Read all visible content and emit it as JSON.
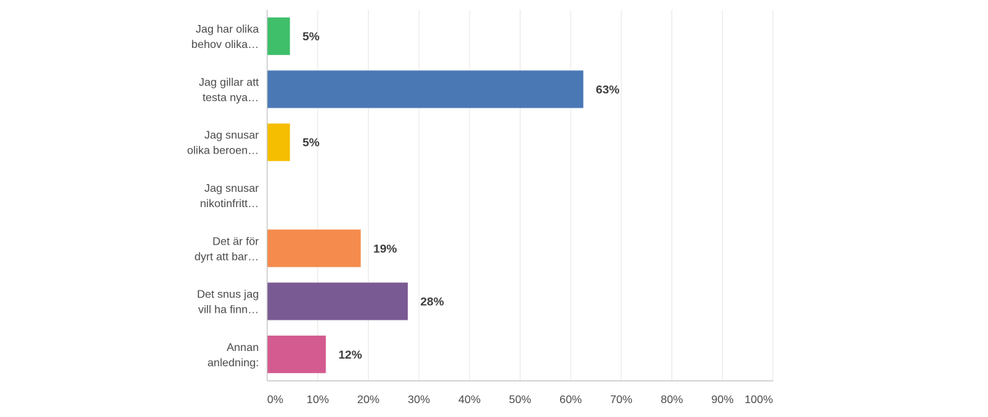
{
  "chart_data": {
    "type": "bar",
    "orientation": "horizontal",
    "categories": [
      [
        "Jag har olika",
        "behov olika…"
      ],
      [
        "Jag gillar att",
        "testa nya…"
      ],
      [
        "Jag snusar",
        "olika beroen…"
      ],
      [
        "Jag snusar",
        "nikotinfritt…"
      ],
      [
        "Det är för",
        "dyrt att bar…"
      ],
      [
        "Det snus jag",
        "vill ha finn…"
      ],
      [
        "Annan",
        "anledning:"
      ]
    ],
    "values": [
      4.5,
      62.5,
      4.5,
      0,
      18.5,
      27.8,
      11.6
    ],
    "value_labels": [
      "5%",
      "63%",
      "5%",
      "",
      "19%",
      "28%",
      "12%"
    ],
    "colors": [
      "#3fbf6a",
      "#4a78b5",
      "#f6be00",
      "#cccccc",
      "#f58b4c",
      "#7a5a93",
      "#d45b8f"
    ],
    "xlim": [
      0,
      100
    ],
    "x_ticks": [
      0,
      10,
      20,
      30,
      40,
      50,
      60,
      70,
      80,
      90,
      100
    ],
    "x_tick_labels": [
      "0%",
      "10%",
      "20%",
      "30%",
      "40%",
      "50%",
      "60%",
      "70%",
      "80%",
      "90%",
      "100%"
    ],
    "grid": true,
    "grid_color": "#e6e6e6",
    "axis_color": "#bdbdbd",
    "text_color": "#4a4a4a",
    "title": "",
    "xlabel": "",
    "ylabel": ""
  }
}
